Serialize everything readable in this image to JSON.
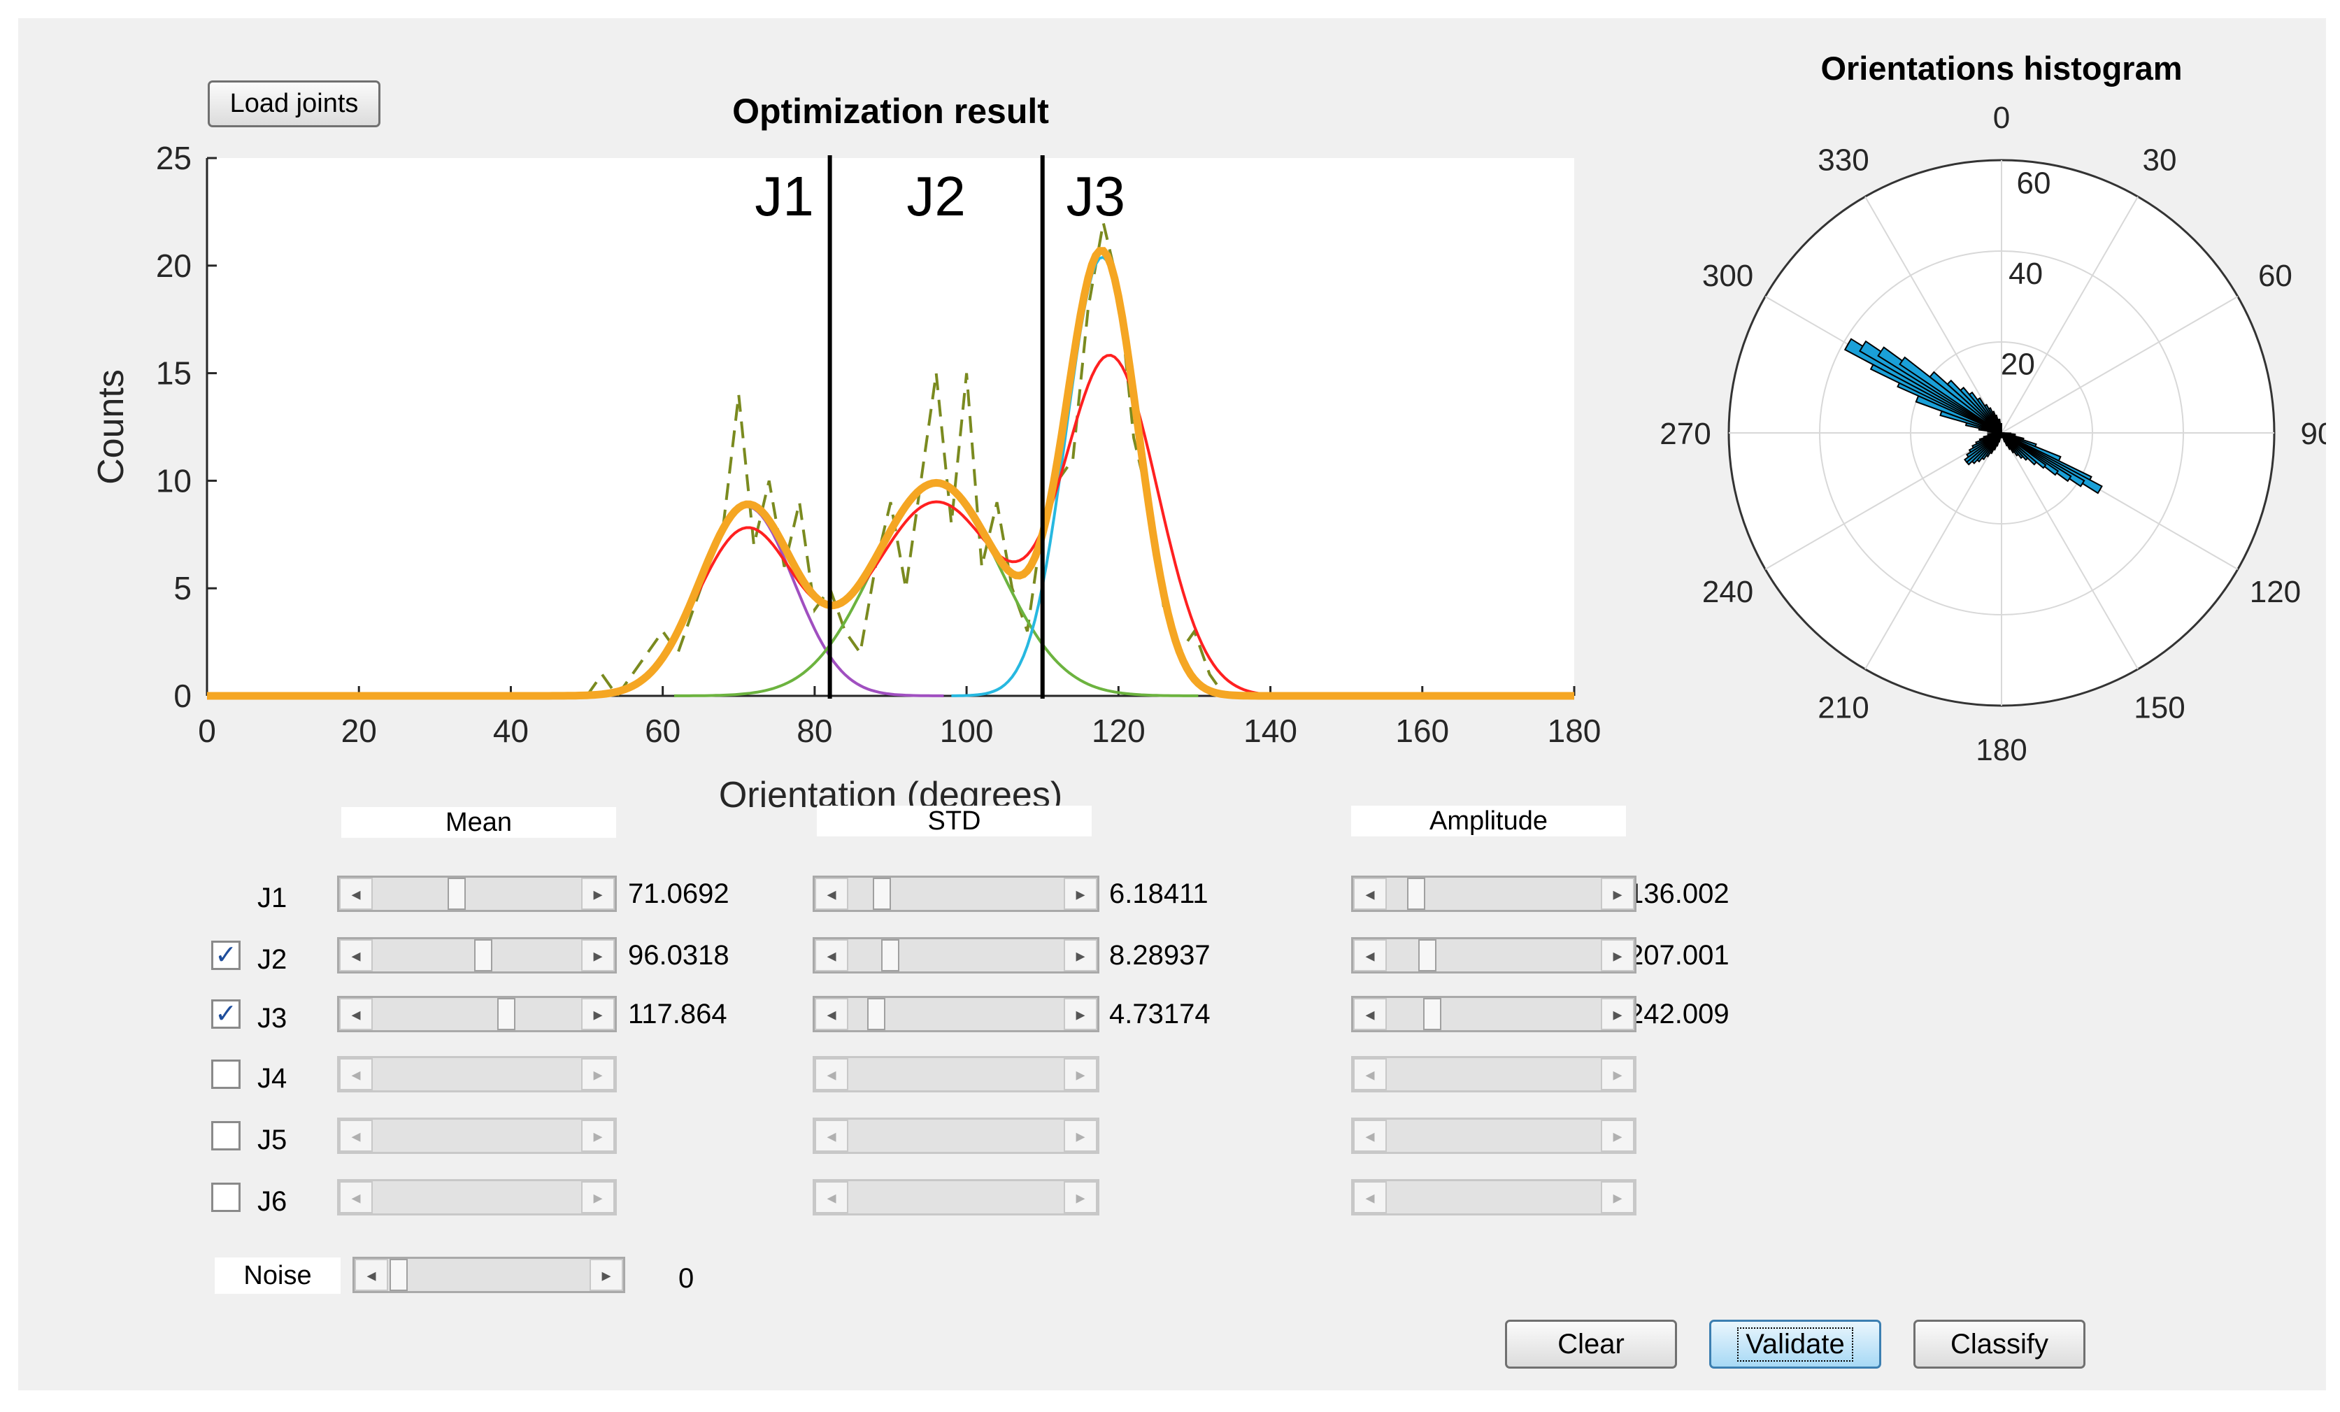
{
  "load_button": "Load joints",
  "chart": {
    "title": "Optimization result",
    "xlabel": "Orientation (degrees)",
    "ylabel": "Counts",
    "region_labels": [
      "J1",
      "J2",
      "J3"
    ]
  },
  "polar": {
    "title": "Orientations histogram"
  },
  "headers": {
    "mean": "Mean",
    "std": "STD",
    "amplitude": "Amplitude"
  },
  "joints": [
    {
      "label": "J1",
      "has_checkbox": false,
      "checked": false,
      "mean": "71.0692",
      "std": "6.18411",
      "amplitude": "136.002",
      "mean_level": 0.394,
      "std_level": 0.124,
      "amp_level": 0.105
    },
    {
      "label": "J2",
      "has_checkbox": true,
      "checked": true,
      "mean": "96.0318",
      "std": "8.28937",
      "amplitude": "207.001",
      "mean_level": 0.534,
      "std_level": 0.166,
      "amp_level": 0.16
    },
    {
      "label": "J3",
      "has_checkbox": true,
      "checked": true,
      "mean": "117.864",
      "std": "4.73174",
      "amplitude": "242.009",
      "mean_level": 0.655,
      "std_level": 0.094,
      "amp_level": 0.187
    },
    {
      "label": "J4",
      "has_checkbox": true,
      "checked": false,
      "mean": "",
      "std": "",
      "amplitude": ""
    },
    {
      "label": "J5",
      "has_checkbox": true,
      "checked": false,
      "mean": "",
      "std": "",
      "amplitude": ""
    },
    {
      "label": "J6",
      "has_checkbox": true,
      "checked": false,
      "mean": "",
      "std": "",
      "amplitude": ""
    }
  ],
  "noise": {
    "label": "Noise",
    "value": "0"
  },
  "buttons": {
    "clear": "Clear",
    "validate": "Validate",
    "classify": "Classify"
  },
  "colors": {
    "background": "#f0f0f0",
    "histogram_dashed": "#7a8a1f",
    "fit_total": "#f5a623",
    "fit_red": "#ff2020",
    "j1_curve": "#a04fc0",
    "j2_curve": "#6cb33f",
    "j3_curve": "#27b8e0",
    "rose_bars": "#1aa0d8"
  },
  "chart_data": [
    {
      "type": "line",
      "title": "Optimization result",
      "xlabel": "Orientation (degrees)",
      "ylabel": "Counts",
      "xlim": [
        0,
        180
      ],
      "ylim": [
        0,
        25
      ],
      "xticks": [
        0,
        20,
        40,
        60,
        80,
        100,
        120,
        140,
        160,
        180
      ],
      "yticks": [
        0,
        5,
        10,
        15,
        20,
        25
      ],
      "dividers": [
        82,
        110
      ],
      "components": [
        {
          "label": "J1",
          "mean": 71.0692,
          "std": 6.18411,
          "peak": 8.8,
          "color": "#a04fc0"
        },
        {
          "label": "J2",
          "mean": 96.0318,
          "std": 8.28937,
          "peak": 9.9,
          "color": "#6cb33f"
        },
        {
          "label": "J3",
          "mean": 117.864,
          "std": 4.73174,
          "peak": 20.4,
          "color": "#27b8e0"
        }
      ],
      "red_fit": [
        {
          "mean": 71,
          "std": 6.5,
          "peak": 7.7
        },
        {
          "mean": 96,
          "std": 8.5,
          "peak": 9.0
        },
        {
          "mean": 119,
          "std": 6.2,
          "peak": 15.6
        }
      ],
      "histogram": {
        "x": [
          50,
          52,
          54,
          56,
          58,
          60,
          62,
          64,
          66,
          68,
          70,
          72,
          74,
          76,
          78,
          80,
          82,
          84,
          86,
          88,
          90,
          92,
          94,
          96,
          98,
          100,
          102,
          104,
          106,
          108,
          110,
          112,
          114,
          116,
          118,
          120,
          122,
          124,
          126,
          128,
          130,
          132,
          134
        ],
        "y": [
          0,
          1,
          0,
          1,
          2,
          3,
          2,
          4,
          6,
          8,
          14,
          7,
          10,
          6,
          9,
          4,
          5,
          3,
          2,
          6,
          9,
          5,
          10,
          15,
          8,
          15,
          6,
          9,
          5,
          3,
          8,
          10,
          11,
          18,
          22,
          19,
          12,
          9,
          4,
          2,
          3,
          1,
          0
        ]
      }
    },
    {
      "type": "bar",
      "title": "Orientations histogram",
      "polar": true,
      "angle_ticks": [
        "0",
        "30",
        "60",
        "90",
        "120",
        "150",
        "180",
        "210",
        "240",
        "270",
        "300",
        "330"
      ],
      "radial_ticks": [
        "20",
        "40",
        "60"
      ],
      "rmax": 60,
      "theta_deg": [
        94,
        98,
        102,
        106,
        110,
        114,
        118,
        120,
        122,
        124,
        126,
        128,
        132,
        136,
        140,
        144,
        148,
        152,
        156,
        160,
        164,
        168,
        172,
        176,
        180,
        184,
        188,
        192,
        196,
        200,
        204,
        208,
        212,
        216,
        220,
        224,
        228,
        232,
        236,
        240,
        244,
        248,
        252,
        256,
        260,
        264,
        268,
        272,
        276,
        280,
        284,
        288,
        292,
        296,
        298,
        300,
        302,
        304,
        306,
        310,
        314,
        318,
        322,
        326,
        330,
        334,
        338,
        342,
        346,
        350,
        354,
        358
      ],
      "r": [
        2,
        3,
        3,
        5,
        8,
        14,
        22,
        25,
        21,
        18,
        15,
        12,
        10,
        8,
        7,
        6,
        5,
        4,
        3,
        2,
        1,
        1,
        1,
        1,
        1,
        1,
        1,
        1,
        2,
        3,
        4,
        5,
        6,
        7,
        8,
        9,
        10,
        10,
        9,
        8,
        7,
        6,
        5,
        4,
        3,
        3,
        2,
        2,
        3,
        5,
        8,
        14,
        20,
        25,
        32,
        39,
        36,
        32,
        27,
        20,
        16,
        13,
        11,
        9,
        7,
        6,
        5,
        4,
        3,
        3,
        2,
        2
      ]
    }
  ]
}
